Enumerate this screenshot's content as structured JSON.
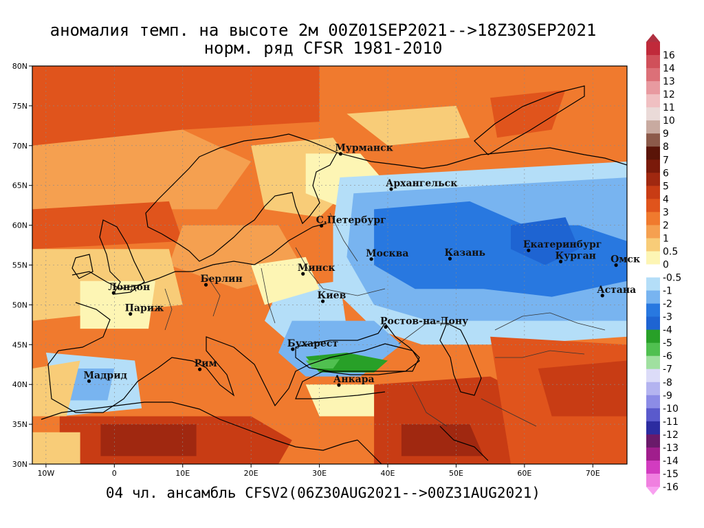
{
  "title_line1": "аномалия темп. на высоте 2м 00Z01SEP2021-->18Z30SEP2021",
  "title_line2": "норм. ряд CFSR 1981-2010",
  "footer": "04 чл. ансамбль CFSV2(06Z30AUG2021-->00Z31AUG2021)",
  "map": {
    "lon_range": [
      -12,
      75
    ],
    "lat_range": [
      30,
      80
    ],
    "lon_ticks": [
      {
        "value": -10,
        "label": "10W"
      },
      {
        "value": 0,
        "label": "0"
      },
      {
        "value": 10,
        "label": "10E"
      },
      {
        "value": 20,
        "label": "20E"
      },
      {
        "value": 30,
        "label": "30E"
      },
      {
        "value": 40,
        "label": "40E"
      },
      {
        "value": 50,
        "label": "50E"
      },
      {
        "value": 60,
        "label": "60E"
      },
      {
        "value": 70,
        "label": "70E"
      }
    ],
    "lat_ticks": [
      {
        "value": 30,
        "label": "30N"
      },
      {
        "value": 35,
        "label": "35N"
      },
      {
        "value": 40,
        "label": "40N"
      },
      {
        "value": 45,
        "label": "45N"
      },
      {
        "value": 50,
        "label": "50N"
      },
      {
        "value": 55,
        "label": "55N"
      },
      {
        "value": 60,
        "label": "60N"
      },
      {
        "value": 65,
        "label": "65N"
      },
      {
        "value": 70,
        "label": "70N"
      },
      {
        "value": 75,
        "label": "75N"
      },
      {
        "value": 80,
        "label": "80N"
      }
    ]
  },
  "cities": [
    {
      "name": "Мурманск",
      "lon": 33.1,
      "lat": 68.97
    },
    {
      "name": "Архангельск",
      "lon": 40.5,
      "lat": 64.54
    },
    {
      "name": "С.Петербург",
      "lon": 30.3,
      "lat": 59.94
    },
    {
      "name": "Москва",
      "lon": 37.6,
      "lat": 55.75
    },
    {
      "name": "Казань",
      "lon": 49.1,
      "lat": 55.8
    },
    {
      "name": "Екатеринбург",
      "lon": 60.6,
      "lat": 56.84
    },
    {
      "name": "Курган",
      "lon": 65.3,
      "lat": 55.44
    },
    {
      "name": "Омск",
      "lon": 73.4,
      "lat": 54.99
    },
    {
      "name": "Астана",
      "lon": 71.4,
      "lat": 51.17
    },
    {
      "name": "Минск",
      "lon": 27.6,
      "lat": 53.9
    },
    {
      "name": "Берлин",
      "lon": 13.4,
      "lat": 52.52
    },
    {
      "name": "Лондон",
      "lon": -0.1,
      "lat": 51.5
    },
    {
      "name": "Париж",
      "lon": 2.35,
      "lat": 48.86
    },
    {
      "name": "Киев",
      "lon": 30.5,
      "lat": 50.45
    },
    {
      "name": "Ростов-на-Дону",
      "lon": 39.7,
      "lat": 47.23
    },
    {
      "name": "Бухарест",
      "lon": 26.1,
      "lat": 44.43
    },
    {
      "name": "Рим",
      "lon": 12.5,
      "lat": 41.9
    },
    {
      "name": "Мадрид",
      "lon": -3.7,
      "lat": 40.42
    },
    {
      "name": "Анкара",
      "lon": 32.85,
      "lat": 39.93
    }
  ],
  "legend": {
    "bins": [
      {
        "label": "16",
        "color": "#c02a3a"
      },
      {
        "label": "14",
        "color": "#d0505a"
      },
      {
        "label": "13",
        "color": "#dc7078"
      },
      {
        "label": "12",
        "color": "#e89aa0"
      },
      {
        "label": "11",
        "color": "#f0c0c2"
      },
      {
        "label": "10",
        "color": "#eadad8"
      },
      {
        "label": "9",
        "color": "#c8aaa0"
      },
      {
        "label": "8",
        "color": "#8c5a4a"
      },
      {
        "label": "7",
        "color": "#5a1408"
      },
      {
        "label": "6",
        "color": "#7a1a0a"
      },
      {
        "label": "5",
        "color": "#a02810"
      },
      {
        "label": "4",
        "color": "#c83c14"
      },
      {
        "label": "3",
        "color": "#e0541c"
      },
      {
        "label": "2",
        "color": "#f07a2e"
      },
      {
        "label": "1",
        "color": "#f5a050"
      },
      {
        "label": "0.5",
        "color": "#f8cc78"
      },
      {
        "label": "0",
        "color": "#fdf5b4"
      },
      {
        "label": "-0.5",
        "color": "#ffffff"
      },
      {
        "label": "-1",
        "color": "#b4def8"
      },
      {
        "label": "-2",
        "color": "#78b4f0"
      },
      {
        "label": "-3",
        "color": "#2878e0"
      },
      {
        "label": "-4",
        "color": "#1e64d2"
      },
      {
        "label": "-5",
        "color": "#28a028"
      },
      {
        "label": "-6",
        "color": "#50c050"
      },
      {
        "label": "-7",
        "color": "#a0e0a0"
      },
      {
        "label": "-8",
        "color": "#dcdcf8"
      },
      {
        "label": "-9",
        "color": "#b4b4f0"
      },
      {
        "label": "-10",
        "color": "#8c8ce6"
      },
      {
        "label": "-11",
        "color": "#5a5acc"
      },
      {
        "label": "-12",
        "color": "#2c2ca0"
      },
      {
        "label": "-13",
        "color": "#6a1a6a"
      },
      {
        "label": "-14",
        "color": "#a01e8c"
      },
      {
        "label": "-15",
        "color": "#d23cc0"
      },
      {
        "label": "-16",
        "color": "#f080e0"
      }
    ],
    "top_arrow_color": "#b03040",
    "bottom_arrow_color": "#f8a0f0"
  },
  "anomaly_regions": [
    {
      "color": "#f07a2e",
      "poly": [
        [
          -12,
          80
        ],
        [
          75,
          80
        ],
        [
          75,
          30
        ],
        [
          -12,
          30
        ]
      ]
    },
    {
      "color": "#e0541c",
      "poly": [
        [
          -12,
          80
        ],
        [
          30,
          80
        ],
        [
          30,
          73
        ],
        [
          10,
          72
        ],
        [
          -12,
          70
        ]
      ]
    },
    {
      "color": "#f5a050",
      "poly": [
        [
          -12,
          70
        ],
        [
          10,
          72
        ],
        [
          20,
          68
        ],
        [
          15,
          62
        ],
        [
          -12,
          62
        ]
      ]
    },
    {
      "color": "#e0541c",
      "poly": [
        [
          -12,
          62
        ],
        [
          8,
          63
        ],
        [
          10,
          58
        ],
        [
          -12,
          57
        ]
      ]
    },
    {
      "color": "#f8cc78",
      "poly": [
        [
          20,
          70
        ],
        [
          32,
          71
        ],
        [
          36,
          66
        ],
        [
          30,
          61
        ],
        [
          22,
          62
        ]
      ]
    },
    {
      "color": "#fdf5b4",
      "poly": [
        [
          28,
          69
        ],
        [
          36,
          69
        ],
        [
          40,
          65
        ],
        [
          34,
          62
        ],
        [
          28,
          64
        ]
      ]
    },
    {
      "color": "#f8cc78",
      "poly": [
        [
          34,
          74
        ],
        [
          50,
          75
        ],
        [
          52,
          71
        ],
        [
          40,
          70
        ]
      ]
    },
    {
      "color": "#f5a050",
      "poly": [
        [
          10,
          60
        ],
        [
          24,
          60
        ],
        [
          28,
          54
        ],
        [
          18,
          52
        ],
        [
          8,
          55
        ]
      ]
    },
    {
      "color": "#f8cc78",
      "poly": [
        [
          -12,
          57
        ],
        [
          8,
          57
        ],
        [
          10,
          50
        ],
        [
          -12,
          48
        ]
      ]
    },
    {
      "color": "#fdf5b4",
      "poly": [
        [
          -5,
          53
        ],
        [
          6,
          53
        ],
        [
          5,
          47
        ],
        [
          -5,
          47
        ]
      ]
    },
    {
      "color": "#b4def8",
      "poly": [
        [
          33,
          66
        ],
        [
          75,
          68
        ],
        [
          75,
          46
        ],
        [
          58,
          45
        ],
        [
          45,
          45
        ],
        [
          38,
          47
        ],
        [
          32,
          52
        ],
        [
          32,
          60
        ]
      ]
    },
    {
      "color": "#78b4f0",
      "poly": [
        [
          35,
          64
        ],
        [
          75,
          66
        ],
        [
          75,
          48
        ],
        [
          60,
          48
        ],
        [
          46,
          48
        ],
        [
          38,
          50
        ],
        [
          34,
          56
        ]
      ]
    },
    {
      "color": "#2878e0",
      "poly": [
        [
          38,
          62
        ],
        [
          52,
          63
        ],
        [
          60,
          60
        ],
        [
          68,
          60
        ],
        [
          75,
          58
        ],
        [
          75,
          53
        ],
        [
          64,
          51
        ],
        [
          54,
          52
        ],
        [
          44,
          52
        ],
        [
          38,
          55
        ]
      ]
    },
    {
      "color": "#1e64d2",
      "poly": [
        [
          58,
          60
        ],
        [
          66,
          61
        ],
        [
          68,
          57
        ],
        [
          63,
          55
        ],
        [
          58,
          57
        ]
      ]
    },
    {
      "color": "#b4def8",
      "poly": [
        [
          24,
          52
        ],
        [
          33,
          53
        ],
        [
          34,
          47
        ],
        [
          26,
          45
        ],
        [
          22,
          48
        ]
      ]
    },
    {
      "color": "#fdf5b4",
      "poly": [
        [
          20,
          55
        ],
        [
          28,
          56
        ],
        [
          30,
          52
        ],
        [
          22,
          50
        ]
      ]
    },
    {
      "color": "#78b4f0",
      "poly": [
        [
          26,
          48
        ],
        [
          38,
          48
        ],
        [
          42,
          45
        ],
        [
          36,
          41
        ],
        [
          28,
          41
        ],
        [
          24,
          44
        ]
      ]
    },
    {
      "color": "#28a028",
      "poly": [
        [
          28,
          43.5
        ],
        [
          34,
          44
        ],
        [
          40,
          43
        ],
        [
          38,
          41.5
        ],
        [
          30,
          41.5
        ]
      ]
    },
    {
      "color": "#50c050",
      "poly": [
        [
          28,
          43
        ],
        [
          33,
          43.2
        ],
        [
          32,
          42
        ],
        [
          29,
          42
        ]
      ]
    },
    {
      "color": "#b4def8",
      "poly": [
        [
          -10,
          44
        ],
        [
          3,
          43
        ],
        [
          4,
          37
        ],
        [
          -8,
          36
        ]
      ]
    },
    {
      "color": "#78b4f0",
      "poly": [
        [
          -8,
          42
        ],
        [
          0,
          42
        ],
        [
          -1,
          38
        ],
        [
          -7,
          38
        ]
      ]
    },
    {
      "color": "#fdf5b4",
      "poly": [
        [
          28,
          40
        ],
        [
          42,
          40
        ],
        [
          44,
          36
        ],
        [
          30,
          36
        ]
      ]
    },
    {
      "color": "#f8cc78",
      "poly": [
        [
          -12,
          42
        ],
        [
          -5,
          43
        ],
        [
          -7,
          36
        ],
        [
          -12,
          36
        ]
      ]
    },
    {
      "color": "#c83c14",
      "poly": [
        [
          -8,
          36
        ],
        [
          20,
          36
        ],
        [
          26,
          33
        ],
        [
          24,
          30
        ],
        [
          -8,
          30
        ]
      ]
    },
    {
      "color": "#a02810",
      "poly": [
        [
          -2,
          35
        ],
        [
          12,
          35
        ],
        [
          12,
          31
        ],
        [
          -2,
          31
        ]
      ]
    },
    {
      "color": "#c83c14",
      "poly": [
        [
          38,
          40
        ],
        [
          55,
          41
        ],
        [
          62,
          38
        ],
        [
          60,
          30
        ],
        [
          38,
          30
        ]
      ]
    },
    {
      "color": "#a02810",
      "poly": [
        [
          42,
          35
        ],
        [
          52,
          35
        ],
        [
          54,
          31
        ],
        [
          42,
          31
        ]
      ]
    },
    {
      "color": "#e0541c",
      "poly": [
        [
          55,
          46
        ],
        [
          75,
          45
        ],
        [
          75,
          30
        ],
        [
          58,
          30
        ]
      ]
    },
    {
      "color": "#c83c14",
      "poly": [
        [
          62,
          42
        ],
        [
          75,
          43
        ],
        [
          75,
          36
        ],
        [
          64,
          36
        ]
      ]
    },
    {
      "color": "#e0541c",
      "poly": [
        [
          55,
          76
        ],
        [
          66,
          77
        ],
        [
          64,
          72
        ],
        [
          56,
          71
        ]
      ]
    },
    {
      "color": "#f8cc78",
      "poly": [
        [
          -12,
          34
        ],
        [
          -5,
          34
        ],
        [
          -5,
          30
        ],
        [
          -12,
          30
        ]
      ]
    }
  ]
}
